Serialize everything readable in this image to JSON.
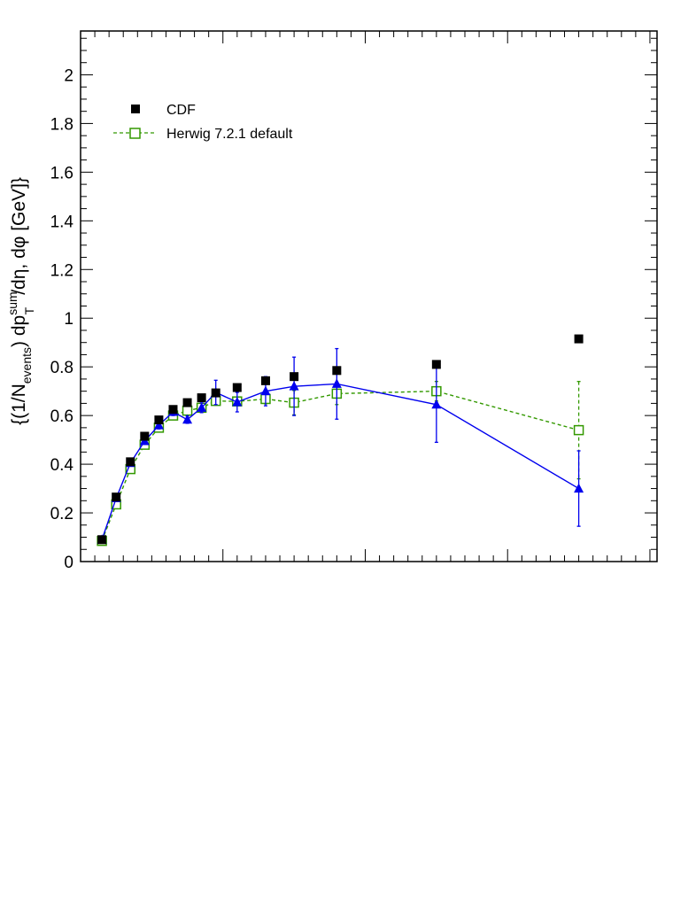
{
  "chart_data": {
    "type": "scatter",
    "ylabel": "{(1/N_events) dp_T^sum/dη, dφ [GeV]}",
    "ylim": [
      0,
      2.18
    ],
    "xlim": [
      0,
      40.5
    ],
    "y_ticks": [
      "0",
      "0.2",
      "0.4",
      "0.6",
      "0.8",
      "1",
      "1.2",
      "1.4",
      "1.6",
      "1.8",
      "2"
    ],
    "x_tick_labels_visible": false,
    "legend_position": "top-left",
    "legend": [
      {
        "label": "CDF",
        "marker": "filled-square",
        "color": "#000000"
      },
      {
        "label": "Herwig 7.2.1 default",
        "marker": "open-square",
        "color": "#339900",
        "line": "dashed"
      }
    ],
    "series": [
      {
        "name": "CDF",
        "marker": "filled-square",
        "color": "#000000",
        "x": [
          1.5,
          2.5,
          3.5,
          4.5,
          5.5,
          6.5,
          7.5,
          8.5,
          9.5,
          11,
          13,
          15,
          18,
          25,
          35
        ],
        "y": [
          0.09,
          0.265,
          0.41,
          0.515,
          0.582,
          0.625,
          0.653,
          0.673,
          0.693,
          0.715,
          0.743,
          0.76,
          0.785,
          0.81,
          0.915
        ]
      },
      {
        "name": "Herwig 7.2.1 default",
        "marker": "open-square",
        "color": "#339900",
        "line": "dashed",
        "x": [
          1.5,
          2.5,
          3.5,
          4.5,
          5.5,
          6.5,
          7.5,
          8.5,
          9.5,
          11,
          13,
          15,
          18,
          25,
          35
        ],
        "y": [
          0.085,
          0.235,
          0.38,
          0.48,
          0.55,
          0.6,
          0.62,
          0.632,
          0.66,
          0.658,
          0.668,
          0.653,
          0.69,
          0.7,
          0.54
        ],
        "yerr": [
          0.005,
          0.01,
          0.01,
          0.01,
          0.01,
          0.01,
          0.01,
          0.01,
          0.015,
          0.015,
          0.02,
          0.05,
          0.045,
          0.04,
          0.2
        ]
      },
      {
        "marker": "filled-triangle",
        "color": "#0000ee",
        "line": "solid",
        "x": [
          1.5,
          2.5,
          3.5,
          4.5,
          5.5,
          6.5,
          7.5,
          8.5,
          9.5,
          11,
          13,
          15,
          18,
          25,
          35
        ],
        "y": [
          0.09,
          0.26,
          0.405,
          0.495,
          0.56,
          0.615,
          0.583,
          0.632,
          0.695,
          0.655,
          0.7,
          0.72,
          0.73,
          0.645,
          0.3
        ],
        "yerr": [
          0.005,
          0.01,
          0.01,
          0.01,
          0.015,
          0.015,
          0.015,
          0.02,
          0.05,
          0.04,
          0.06,
          0.12,
          0.145,
          0.155,
          0.155
        ]
      }
    ]
  }
}
